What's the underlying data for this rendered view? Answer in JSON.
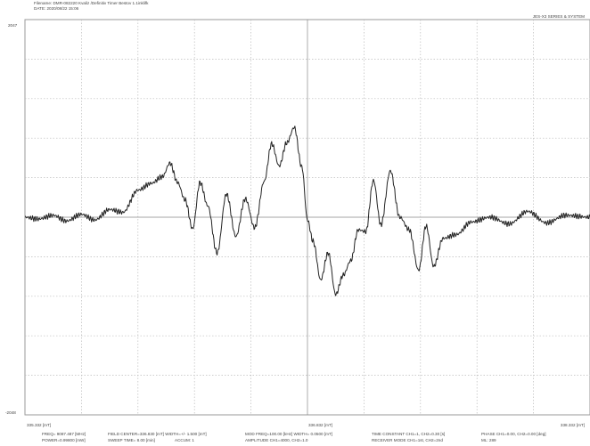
{
  "header": {
    "filename": "Filename: DMR-082220 Kvaliz /Definitiv Timer Bestov 1.1inklifk",
    "date": "DATE: 2020/08/22 15:06",
    "system": "JES-X3 SERIES & SYSTEM"
  },
  "footer": {
    "row1": [
      "FREQ= 9087.487 [MHz]",
      "FIELD CENTER=336.830 [mT]  WIDTH=+/-  1.500 [mT]",
      "MOD FREQ=100.00 [kHz]  WIDTH=  0.0500 [mT]",
      "TIME CONSTANT CH1=1, CH2=0.30 [s]",
      "PHASE CH1=0.00, CH2=0.00 [deg]"
    ],
    "row2": [
      "POWER=0.99800 [mW]",
      "SWEEP TIME=  8.00 [min]",
      "ACCUM: 1",
      "AMPLITUDE CH1=4000, CH2=1.0",
      "RECEIVER MODE CH1=1st, CH2=2nd",
      "ML: 289"
    ]
  },
  "chart_data": {
    "type": "line",
    "x_unit": "mT",
    "xlim": [
      335.33,
      338.33
    ],
    "ylim": [
      -2048,
      2047
    ],
    "y_tick_labels": {
      "top": "2047",
      "bottom": "-2048"
    },
    "x_tick_labels": [
      "335.332 [mT]",
      "336.832 [mT]",
      "338.332 [mT]"
    ],
    "grid": true,
    "series": [
      {
        "x": [
          335.33,
          335.4,
          335.48,
          335.55,
          335.63,
          335.7,
          335.78,
          335.85,
          335.93,
          336.0,
          336.06,
          336.1,
          336.14,
          336.18,
          336.22,
          336.26,
          336.3,
          336.35,
          336.4,
          336.45,
          336.5,
          336.55,
          336.6,
          336.64,
          336.68,
          336.72,
          336.76,
          336.8,
          336.83,
          336.86,
          336.9,
          336.94,
          336.98,
          337.02,
          337.06,
          337.1,
          337.14,
          337.18,
          337.22,
          337.27,
          337.32,
          337.37,
          337.42,
          337.46,
          337.5,
          337.55,
          337.62,
          337.7,
          337.8,
          337.9,
          338.0,
          338.1,
          338.2,
          338.33
        ],
        "y": [
          0,
          -20,
          20,
          -40,
          30,
          -30,
          80,
          50,
          280,
          350,
          420,
          560,
          360,
          180,
          -120,
          360,
          120,
          -370,
          240,
          -200,
          190,
          -110,
          370,
          760,
          530,
          770,
          930,
          520,
          -30,
          -250,
          -650,
          -370,
          -800,
          -600,
          -450,
          -130,
          -150,
          380,
          -80,
          480,
          0,
          -130,
          -550,
          -90,
          -510,
          -220,
          -180,
          -50,
          0,
          -70,
          60,
          -60,
          20,
          0
        ]
      }
    ]
  }
}
